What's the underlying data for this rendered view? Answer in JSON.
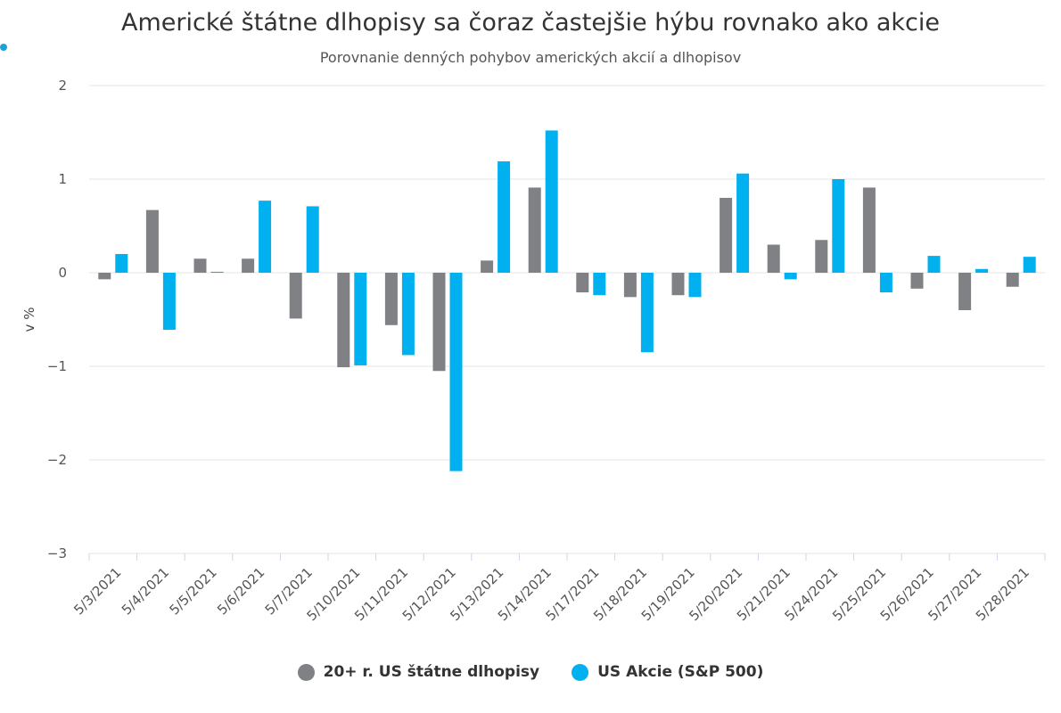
{
  "chart_data": {
    "type": "bar",
    "title": "Americké štátne dlhopisy sa čoraz častejšie hýbu rovnako ako akcie",
    "subtitle": "Porovnanie denných pohybov amerických akcií a dlhopisov",
    "ylabel": "v %",
    "ylim": [
      -3,
      2
    ],
    "yticks": [
      2,
      1,
      0,
      -1,
      -2,
      -3
    ],
    "ytick_labels": [
      "2",
      "1",
      "0",
      "−1",
      "−2",
      "−3"
    ],
    "grid": true,
    "legend_position": "bottom",
    "categories": [
      "5/3/2021",
      "5/4/2021",
      "5/5/2021",
      "5/6/2021",
      "5/7/2021",
      "5/10/2021",
      "5/11/2021",
      "5/12/2021",
      "5/13/2021",
      "5/14/2021",
      "5/17/2021",
      "5/18/2021",
      "5/19/2021",
      "5/20/2021",
      "5/21/2021",
      "5/24/2021",
      "5/25/2021",
      "5/26/2021",
      "5/27/2021",
      "5/28/2021"
    ],
    "series": [
      {
        "name": "20+ r. US štátne dlhopisy",
        "color": "#7f8185",
        "values": [
          -0.07,
          0.67,
          0.15,
          0.15,
          -0.49,
          -1.01,
          -0.56,
          -1.05,
          0.13,
          0.91,
          -0.21,
          -0.26,
          -0.24,
          0.8,
          0.3,
          0.35,
          0.91,
          -0.17,
          -0.4,
          -0.15
        ]
      },
      {
        "name": "US Akcie (S&P 500)",
        "color": "#00b0ef",
        "values": [
          0.2,
          -0.61,
          0.01,
          0.77,
          0.71,
          -0.99,
          -0.88,
          -2.12,
          1.19,
          1.52,
          -0.24,
          -0.85,
          -0.26,
          1.06,
          -0.07,
          1.0,
          -0.21,
          0.18,
          0.04,
          0.17
        ]
      }
    ]
  },
  "colors": {
    "accent_dot": "#1aa3d9",
    "grid": "#e6e6e6",
    "axis_text": "#555555"
  }
}
